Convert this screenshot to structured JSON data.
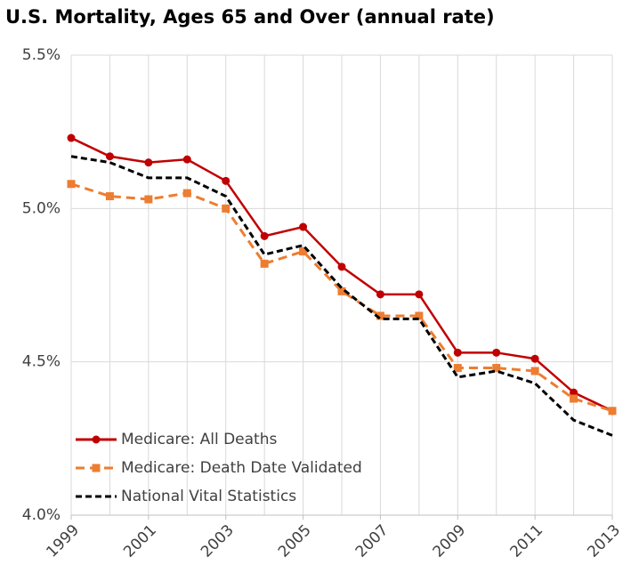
{
  "chart_data": {
    "type": "line",
    "title": "U.S. Mortality, Ages 65 and Over (annual rate)",
    "x": [
      1999,
      2000,
      2001,
      2002,
      2003,
      2004,
      2005,
      2006,
      2007,
      2008,
      2009,
      2010,
      2011,
      2012,
      2013
    ],
    "xlim": [
      1999,
      2013
    ],
    "xticks": [
      1999,
      2001,
      2003,
      2005,
      2007,
      2009,
      2011,
      2013
    ],
    "ylim": [
      4.0,
      5.5
    ],
    "yticks": [
      {
        "value": 4.0,
        "label": "4.0%"
      },
      {
        "value": 4.5,
        "label": "4.5%"
      },
      {
        "value": 5.0,
        "label": "5.0%"
      },
      {
        "value": 5.5,
        "label": "5.5%"
      }
    ],
    "grid": true,
    "legend": "lower left",
    "series": [
      {
        "name": "Medicare: All Deaths",
        "color": "#c00000",
        "dash": false,
        "marker": "circle",
        "values": [
          5.23,
          5.17,
          5.15,
          5.16,
          5.09,
          4.91,
          4.94,
          4.81,
          4.72,
          4.72,
          4.53,
          4.53,
          4.51,
          4.4,
          4.34
        ]
      },
      {
        "name": "Medicare: Death Date Validated",
        "color": "#ed7d31",
        "dash": true,
        "marker": "square",
        "values": [
          5.08,
          5.04,
          5.03,
          5.05,
          5.0,
          4.82,
          4.86,
          4.73,
          4.65,
          4.65,
          4.48,
          4.48,
          4.47,
          4.38,
          4.34
        ]
      },
      {
        "name": "National Vital Statistics",
        "color": "#000000",
        "dash": true,
        "marker": null,
        "values": [
          5.17,
          5.15,
          5.1,
          5.1,
          5.04,
          4.85,
          4.88,
          4.74,
          4.64,
          4.64,
          4.45,
          4.47,
          4.43,
          4.31,
          4.26
        ]
      }
    ]
  }
}
